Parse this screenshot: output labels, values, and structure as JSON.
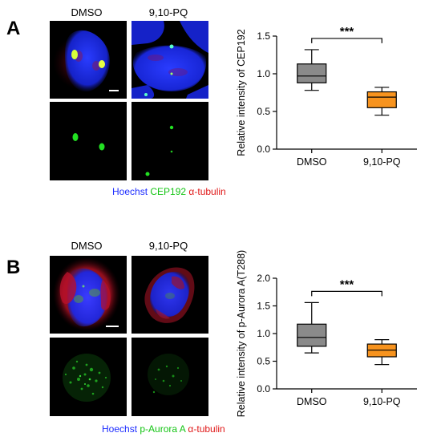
{
  "panel_a": {
    "letter": "A",
    "col_labels": [
      "DMSO",
      "9,10-PQ"
    ],
    "legend": {
      "hoechst": "Hoechst",
      "marker": "CEP192",
      "tubulin": "α-tubulin"
    },
    "colors": {
      "hoechst": "#1c2cff",
      "marker": "#13c413",
      "tubulin": "#e01818"
    }
  },
  "panel_b": {
    "letter": "B",
    "col_labels": [
      "DMSO",
      "9,10-PQ"
    ],
    "legend": {
      "hoechst": "Hoechst",
      "marker": "p-Aurora A",
      "tubulin": "α-tubulin"
    },
    "colors": {
      "hoechst": "#1c2cff",
      "marker": "#13c413",
      "tubulin": "#e01818"
    }
  },
  "chart_data": [
    {
      "type": "box",
      "ylabel": "Relative intensity of CEP192",
      "ylim": [
        0,
        1.5
      ],
      "yticks": [
        "0.0",
        "0.5",
        "1.0",
        "1.5"
      ],
      "categories": [
        "DMSO",
        "9,10-PQ"
      ],
      "boxes": [
        {
          "name": "DMSO",
          "min": 0.78,
          "q1": 0.88,
          "median": 0.97,
          "q3": 1.13,
          "max": 1.32,
          "color": "#8a8a8a"
        },
        {
          "name": "9,10-PQ",
          "min": 0.45,
          "q1": 0.55,
          "median": 0.69,
          "q3": 0.76,
          "max": 0.82,
          "color": "#f7931e"
        }
      ],
      "significance": "***"
    },
    {
      "type": "box",
      "ylabel": "Relative intensity of p-Aurora A(T288)",
      "ylim": [
        0,
        2.0
      ],
      "yticks": [
        "0.0",
        "0.5",
        "1.0",
        "1.5",
        "2.0"
      ],
      "categories": [
        "DMSO",
        "9,10-PQ"
      ],
      "boxes": [
        {
          "name": "DMSO",
          "min": 0.65,
          "q1": 0.77,
          "median": 0.93,
          "q3": 1.17,
          "max": 1.56,
          "color": "#8a8a8a"
        },
        {
          "name": "9,10-PQ",
          "min": 0.44,
          "q1": 0.58,
          "median": 0.7,
          "q3": 0.81,
          "max": 0.89,
          "color": "#f7931e"
        }
      ],
      "significance": "***"
    }
  ]
}
